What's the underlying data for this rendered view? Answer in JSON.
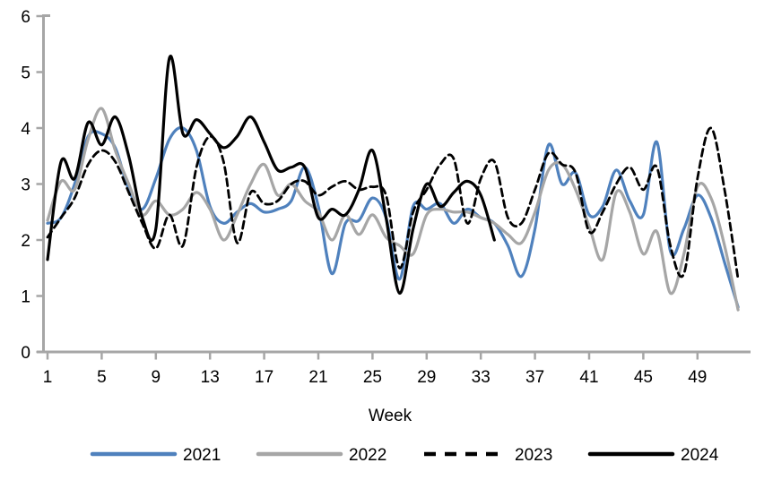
{
  "chart_data": {
    "type": "line",
    "title": "",
    "xlabel": "Week",
    "ylabel": "",
    "xlim": [
      1,
      52
    ],
    "ylim": [
      0,
      6
    ],
    "grid": false,
    "legend_position": "bottom",
    "axis_color": "#a6a6a6",
    "text_color": "#000000",
    "y_ticks": [
      0,
      1,
      2,
      3,
      4,
      5,
      6
    ],
    "x_ticks": [
      1,
      5,
      9,
      13,
      17,
      21,
      25,
      29,
      33,
      37,
      41,
      45,
      49
    ],
    "x": [
      1,
      2,
      3,
      4,
      5,
      6,
      7,
      8,
      9,
      10,
      11,
      12,
      13,
      14,
      15,
      16,
      17,
      18,
      19,
      20,
      21,
      22,
      23,
      24,
      25,
      26,
      27,
      28,
      29,
      30,
      31,
      32,
      33,
      34,
      35,
      36,
      37,
      38,
      39,
      40,
      41,
      42,
      43,
      44,
      45,
      46,
      47,
      48,
      49,
      50,
      51,
      52
    ],
    "series": [
      {
        "name": "2021",
        "color": "#4f81bd",
        "dash": "solid",
        "values": [
          2.3,
          2.4,
          3.0,
          3.85,
          3.9,
          3.65,
          2.9,
          2.55,
          3.1,
          3.8,
          4.0,
          3.6,
          2.6,
          2.3,
          2.5,
          2.65,
          2.5,
          2.55,
          2.7,
          3.3,
          2.6,
          1.4,
          2.3,
          2.35,
          2.75,
          2.4,
          1.3,
          2.6,
          2.55,
          2.65,
          2.3,
          2.55,
          2.4,
          2.3,
          1.9,
          1.35,
          2.2,
          3.7,
          3.0,
          3.2,
          2.45,
          2.6,
          3.25,
          2.7,
          2.45,
          3.75,
          1.8,
          2.2,
          2.8,
          2.4,
          1.6,
          0.8
        ]
      },
      {
        "name": "2022",
        "color": "#a6a6a6",
        "dash": "solid",
        "values": [
          2.35,
          3.05,
          2.9,
          3.8,
          4.35,
          3.6,
          3.0,
          2.45,
          2.7,
          2.45,
          2.55,
          2.85,
          2.55,
          2.0,
          2.45,
          3.0,
          3.35,
          2.8,
          3.0,
          2.7,
          2.5,
          2.0,
          2.45,
          2.1,
          2.45,
          2.05,
          1.9,
          1.75,
          2.45,
          2.55,
          2.5,
          2.5,
          2.4,
          2.3,
          2.1,
          1.95,
          2.5,
          3.25,
          3.35,
          2.9,
          2.25,
          1.65,
          2.85,
          2.5,
          1.75,
          2.15,
          1.05,
          1.75,
          2.95,
          2.75,
          1.9,
          0.75
        ]
      },
      {
        "name": "2023",
        "color": "#000000",
        "dash": "dashed",
        "values": [
          2.05,
          2.4,
          2.75,
          3.35,
          3.6,
          3.4,
          2.85,
          2.3,
          1.85,
          2.45,
          1.9,
          3.3,
          3.85,
          3.4,
          1.95,
          2.85,
          2.65,
          2.7,
          3.0,
          3.05,
          2.8,
          2.95,
          3.05,
          2.9,
          2.95,
          2.8,
          1.5,
          2.5,
          2.9,
          3.35,
          3.45,
          2.3,
          3.1,
          3.4,
          2.4,
          2.3,
          2.9,
          3.55,
          3.35,
          3.2,
          2.15,
          2.5,
          3.0,
          3.3,
          2.9,
          3.3,
          1.9,
          1.4,
          3.1,
          4.0,
          2.9,
          1.3
        ]
      },
      {
        "name": "2024",
        "color": "#000000",
        "dash": "solid",
        "values": [
          1.65,
          3.4,
          3.1,
          4.1,
          3.7,
          4.2,
          3.5,
          2.4,
          2.2,
          5.25,
          3.9,
          4.15,
          3.9,
          3.65,
          3.85,
          4.2,
          3.75,
          3.25,
          3.3,
          3.3,
          2.4,
          2.55,
          2.45,
          2.9,
          3.6,
          2.4,
          1.05,
          2.2,
          3.0,
          2.6,
          2.85,
          3.05,
          2.8,
          2.0
        ]
      }
    ]
  }
}
